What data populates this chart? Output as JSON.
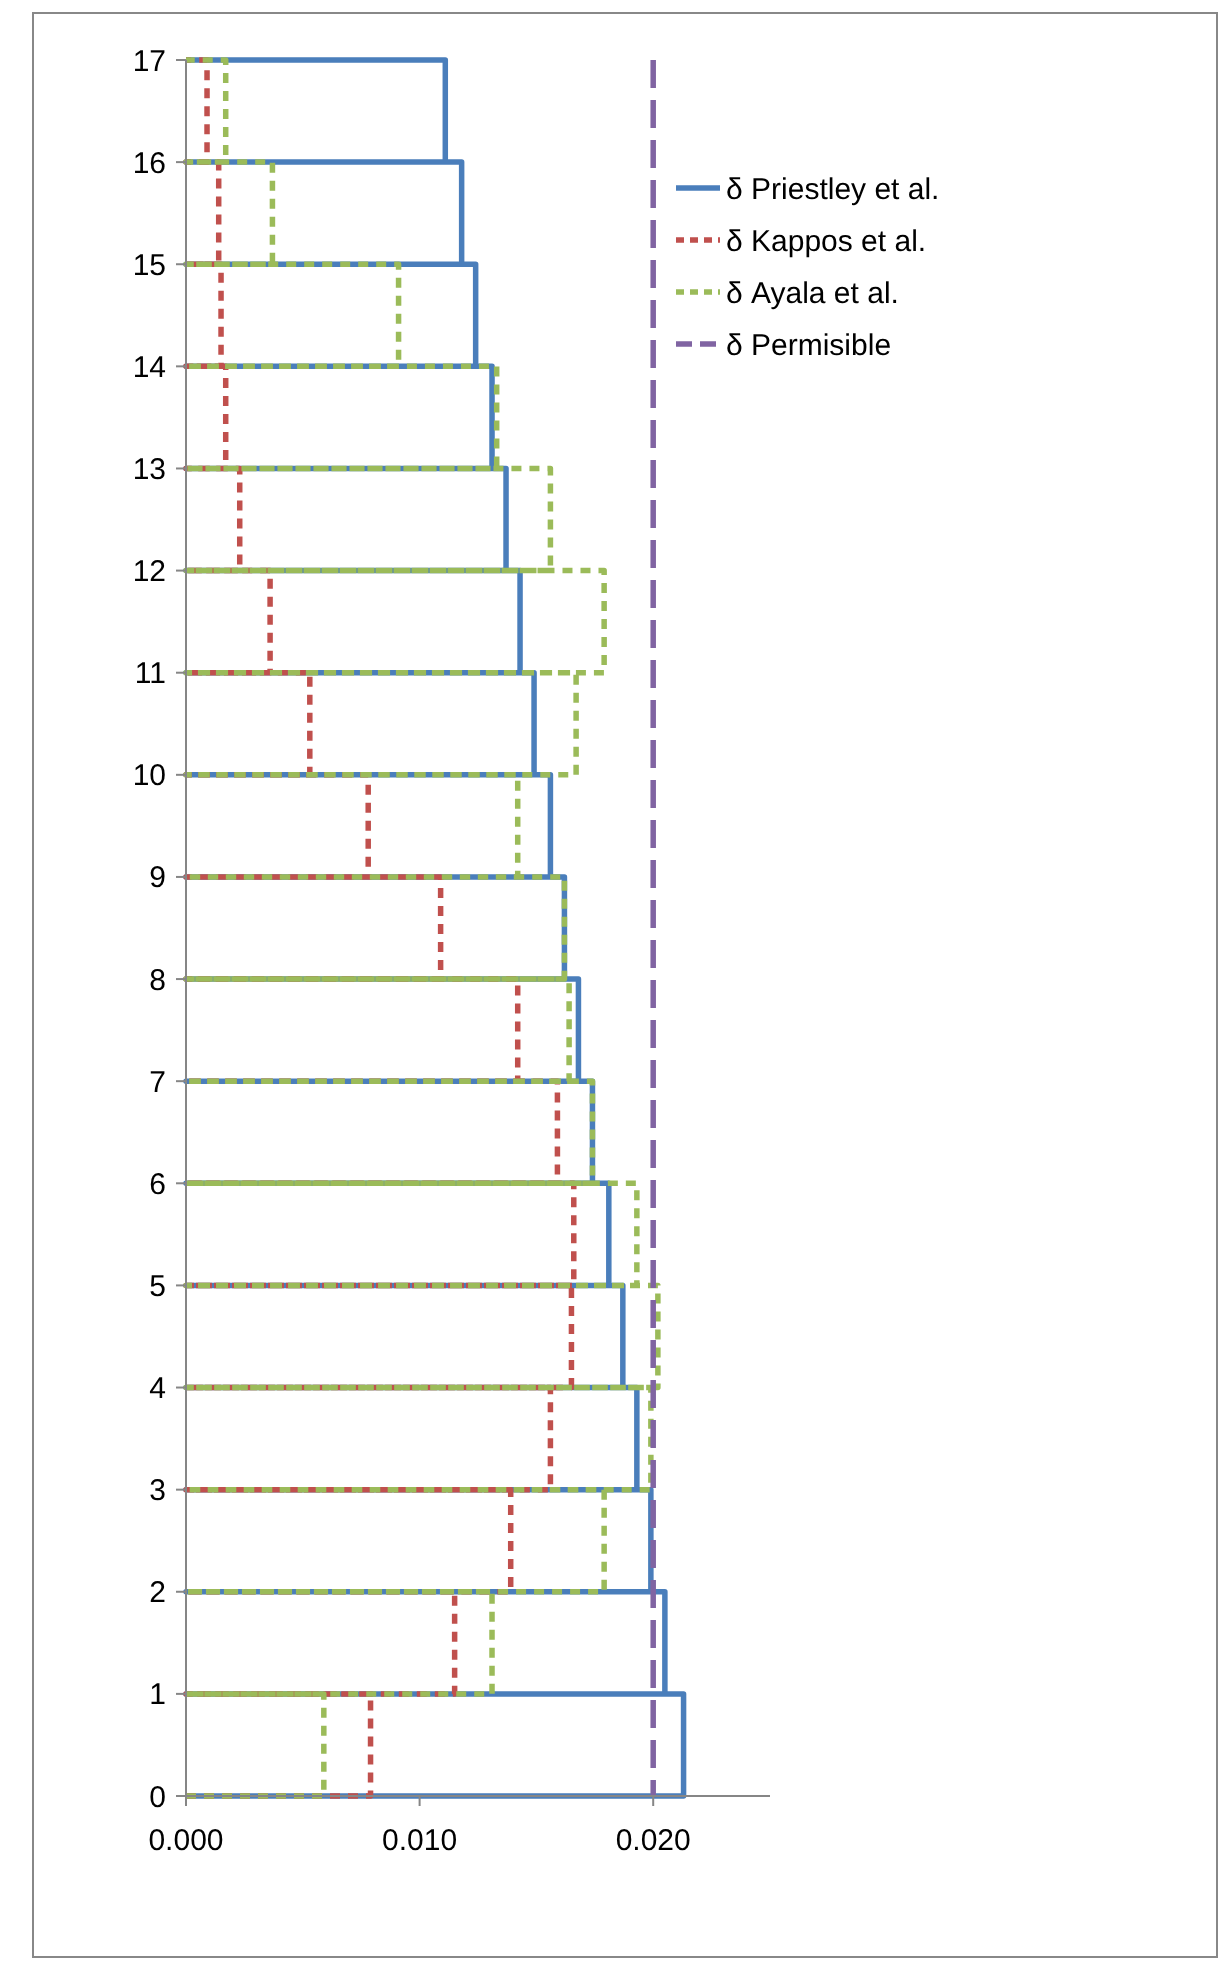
{
  "chart_data": {
    "type": "line",
    "marker": "none",
    "series": [
      {
        "name": "δ Priestley et al.",
        "color": "#4a7ebb",
        "line_style": "solid",
        "x": [
          0,
          0.0213,
          0.0213,
          0,
          0.0205,
          0.0205,
          0,
          0.0199,
          0.0199,
          0,
          0.0193,
          0.0193,
          0,
          0.0187,
          0.0187,
          0,
          0.0181,
          0.0181,
          0,
          0.0174,
          0.0174,
          0,
          0.0168,
          0.0168,
          0,
          0.0162,
          0.0162,
          0,
          0.0156,
          0.0156,
          0,
          0.0149,
          0.0149,
          0,
          0.0143,
          0.0143,
          0,
          0.0137,
          0.0137,
          0,
          0.0131,
          0.0131,
          0,
          0.0124,
          0.0124,
          0,
          0.0118,
          0.0118,
          0,
          0.0111,
          0.0111,
          0
        ],
        "values": [
          0,
          0,
          1,
          1,
          1,
          2,
          2,
          2,
          3,
          3,
          3,
          4,
          4,
          4,
          5,
          5,
          5,
          6,
          6,
          6,
          7,
          7,
          7,
          8,
          8,
          8,
          9,
          9,
          9,
          10,
          10,
          10,
          11,
          11,
          11,
          12,
          12,
          12,
          13,
          13,
          13,
          14,
          14,
          14,
          15,
          15,
          15,
          16,
          16,
          16,
          17,
          17
        ]
      },
      {
        "name": "δ Kappos et al.",
        "color": "#c0504d",
        "line_style": "dashed",
        "x": [
          0,
          0.0079,
          0.0079,
          0,
          0.0115,
          0.0115,
          0,
          0.0139,
          0.0139,
          0,
          0.0156,
          0.0156,
          0,
          0.0165,
          0.0165,
          0,
          0.0166,
          0.0166,
          0,
          0.0159,
          0.0159,
          0,
          0.0142,
          0.0142,
          0,
          0.0109,
          0.0109,
          0,
          0.0078,
          0.0078,
          0,
          0.0053,
          0.0053,
          0,
          0.0036,
          0.0036,
          0,
          0.0023,
          0.0023,
          0,
          0.0017,
          0.0017,
          0,
          0.0015,
          0.0015,
          0,
          0.0014,
          0.0014,
          0,
          0.0009,
          0.0009,
          0
        ],
        "values": [
          0,
          0,
          1,
          1,
          1,
          2,
          2,
          2,
          3,
          3,
          3,
          4,
          4,
          4,
          5,
          5,
          5,
          6,
          6,
          6,
          7,
          7,
          7,
          8,
          8,
          8,
          9,
          9,
          9,
          10,
          10,
          10,
          11,
          11,
          11,
          12,
          12,
          12,
          13,
          13,
          13,
          14,
          14,
          14,
          15,
          15,
          15,
          16,
          16,
          16,
          17,
          17
        ]
      },
      {
        "name": "δ Ayala et al.",
        "color": "#9bbb59",
        "line_style": "dashed",
        "x": [
          0,
          0.0059,
          0.0059,
          0,
          0.0131,
          0.0131,
          0,
          0.0179,
          0.0179,
          0,
          0.0199,
          0.0199,
          0,
          0.0202,
          0.0202,
          0,
          0.0193,
          0.0193,
          0,
          0.0174,
          0.0174,
          0,
          0.0164,
          0.0164,
          0,
          0.0162,
          0.0162,
          0,
          0.0142,
          0.0142,
          0,
          0.0167,
          0.0167,
          0,
          0.0179,
          0.0179,
          0,
          0.0156,
          0.0156,
          0,
          0.0133,
          0.0133,
          0,
          0.0091,
          0.0091,
          0,
          0.0037,
          0.0037,
          0,
          0.0017,
          0.0017,
          0
        ],
        "values": [
          0,
          0,
          1,
          1,
          1,
          2,
          2,
          2,
          3,
          3,
          3,
          4,
          4,
          4,
          5,
          5,
          5,
          6,
          6,
          6,
          7,
          7,
          7,
          8,
          8,
          8,
          9,
          9,
          9,
          10,
          10,
          10,
          11,
          11,
          11,
          12,
          12,
          12,
          13,
          13,
          13,
          14,
          14,
          14,
          15,
          15,
          15,
          16,
          16,
          16,
          17,
          17
        ]
      }
    ],
    "ref_lines": [
      {
        "axis": "x",
        "value": 0.02,
        "label": "δ Permisible",
        "color": "#8064a2",
        "line_style": "dashed"
      }
    ],
    "xlim": [
      0,
      0.025
    ],
    "xticks": [
      {
        "value": 0,
        "label": "0.000"
      },
      {
        "value": 0.01,
        "label": "0.010"
      },
      {
        "value": 0.02,
        "label": "0.020"
      }
    ],
    "ylim": [
      0,
      17
    ],
    "yticks": [
      0,
      1,
      2,
      3,
      4,
      5,
      6,
      7,
      8,
      9,
      10,
      11,
      12,
      13,
      14,
      15,
      16,
      17
    ],
    "grid": false,
    "legend": "top right"
  }
}
